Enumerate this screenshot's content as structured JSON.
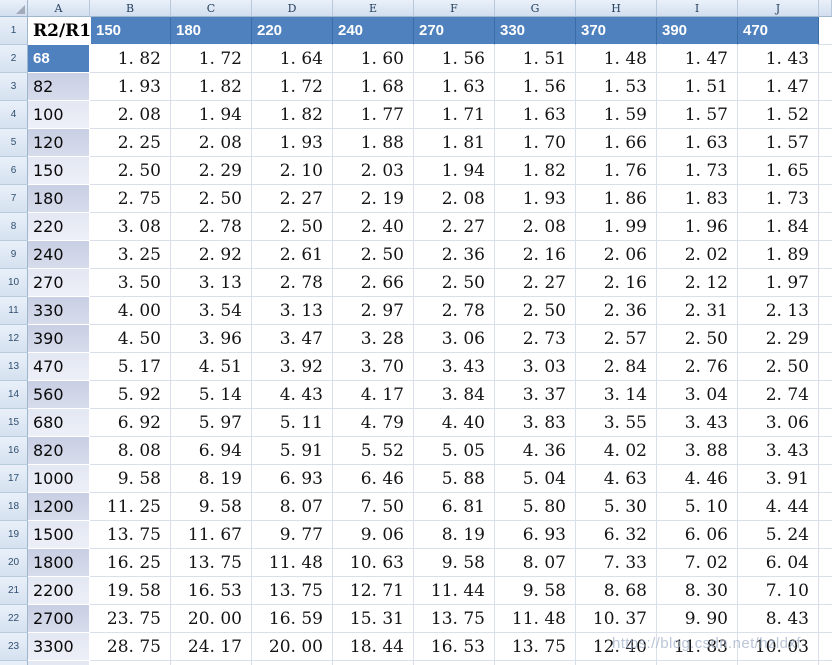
{
  "watermark": "https://blog.csdn.net/hzldxf",
  "colors": {
    "header_blue": "#4E81BD",
    "header_blue_separator": "#3A6DA6",
    "band_dark": "#CDD3E6",
    "band_light": "#E8EBF4",
    "gridline": "#D9E0EC",
    "chrome_border": "#9EB6CE",
    "row_number_text": "#2F4F6F"
  },
  "spreadsheet": {
    "column_letters": [
      "A",
      "B",
      "C",
      "D",
      "E",
      "F",
      "G",
      "H",
      "I",
      "J"
    ],
    "row_numbers": [
      "1",
      "2",
      "3",
      "4",
      "5",
      "6",
      "7",
      "8",
      "9",
      "10",
      "11",
      "12",
      "13",
      "14",
      "15",
      "16",
      "17",
      "18",
      "19",
      "20",
      "21",
      "22",
      "23"
    ],
    "corner_label": "R2/R1",
    "header_values": [
      "150",
      "180",
      "220",
      "240",
      "270",
      "330",
      "370",
      "390",
      "470"
    ],
    "rows": [
      {
        "label": "68",
        "shade": "header",
        "values": [
          "1.82",
          "1.72",
          "1.64",
          "1.60",
          "1.56",
          "1.51",
          "1.48",
          "1.47",
          "1.43"
        ]
      },
      {
        "label": "82",
        "shade": "dark",
        "values": [
          "1.93",
          "1.82",
          "1.72",
          "1.68",
          "1.63",
          "1.56",
          "1.53",
          "1.51",
          "1.47"
        ]
      },
      {
        "label": "100",
        "shade": "light",
        "values": [
          "2.08",
          "1.94",
          "1.82",
          "1.77",
          "1.71",
          "1.63",
          "1.59",
          "1.57",
          "1.52"
        ]
      },
      {
        "label": "120",
        "shade": "dark",
        "values": [
          "2.25",
          "2.08",
          "1.93",
          "1.88",
          "1.81",
          "1.70",
          "1.66",
          "1.63",
          "1.57"
        ]
      },
      {
        "label": "150",
        "shade": "light",
        "values": [
          "2.50",
          "2.29",
          "2.10",
          "2.03",
          "1.94",
          "1.82",
          "1.76",
          "1.73",
          "1.65"
        ]
      },
      {
        "label": "180",
        "shade": "dark",
        "values": [
          "2.75",
          "2.50",
          "2.27",
          "2.19",
          "2.08",
          "1.93",
          "1.86",
          "1.83",
          "1.73"
        ]
      },
      {
        "label": "220",
        "shade": "light",
        "values": [
          "3.08",
          "2.78",
          "2.50",
          "2.40",
          "2.27",
          "2.08",
          "1.99",
          "1.96",
          "1.84"
        ]
      },
      {
        "label": "240",
        "shade": "dark",
        "values": [
          "3.25",
          "2.92",
          "2.61",
          "2.50",
          "2.36",
          "2.16",
          "2.06",
          "2.02",
          "1.89"
        ]
      },
      {
        "label": "270",
        "shade": "light",
        "values": [
          "3.50",
          "3.13",
          "2.78",
          "2.66",
          "2.50",
          "2.27",
          "2.16",
          "2.12",
          "1.97"
        ]
      },
      {
        "label": "330",
        "shade": "dark",
        "values": [
          "4.00",
          "3.54",
          "3.13",
          "2.97",
          "2.78",
          "2.50",
          "2.36",
          "2.31",
          "2.13"
        ]
      },
      {
        "label": "390",
        "shade": "dark",
        "values": [
          "4.50",
          "3.96",
          "3.47",
          "3.28",
          "3.06",
          "2.73",
          "2.57",
          "2.50",
          "2.29"
        ]
      },
      {
        "label": "470",
        "shade": "light",
        "values": [
          "5.17",
          "4.51",
          "3.92",
          "3.70",
          "3.43",
          "3.03",
          "2.84",
          "2.76",
          "2.50"
        ]
      },
      {
        "label": "560",
        "shade": "dark",
        "values": [
          "5.92",
          "5.14",
          "4.43",
          "4.17",
          "3.84",
          "3.37",
          "3.14",
          "3.04",
          "2.74"
        ]
      },
      {
        "label": "680",
        "shade": "light",
        "values": [
          "6.92",
          "5.97",
          "5.11",
          "4.79",
          "4.40",
          "3.83",
          "3.55",
          "3.43",
          "3.06"
        ]
      },
      {
        "label": "820",
        "shade": "dark",
        "values": [
          "8.08",
          "6.94",
          "5.91",
          "5.52",
          "5.05",
          "4.36",
          "4.02",
          "3.88",
          "3.43"
        ]
      },
      {
        "label": "1000",
        "shade": "light",
        "values": [
          "9.58",
          "8.19",
          "6.93",
          "6.46",
          "5.88",
          "5.04",
          "4.63",
          "4.46",
          "3.91"
        ]
      },
      {
        "label": "1200",
        "shade": "dark",
        "values": [
          "11.25",
          "9.58",
          "8.07",
          "7.50",
          "6.81",
          "5.80",
          "5.30",
          "5.10",
          "4.44"
        ]
      },
      {
        "label": "1500",
        "shade": "light",
        "values": [
          "13.75",
          "11.67",
          "9.77",
          "9.06",
          "8.19",
          "6.93",
          "6.32",
          "6.06",
          "5.24"
        ]
      },
      {
        "label": "1800",
        "shade": "dark",
        "values": [
          "16.25",
          "13.75",
          "11.48",
          "10.63",
          "9.58",
          "8.07",
          "7.33",
          "7.02",
          "6.04"
        ]
      },
      {
        "label": "2200",
        "shade": "light",
        "values": [
          "19.58",
          "16.53",
          "13.75",
          "12.71",
          "11.44",
          "9.58",
          "8.68",
          "8.30",
          "7.10"
        ]
      },
      {
        "label": "2700",
        "shade": "dark",
        "values": [
          "23.75",
          "20.00",
          "16.59",
          "15.31",
          "13.75",
          "11.48",
          "10.37",
          "9.90",
          "8.43"
        ]
      },
      {
        "label": "3300",
        "shade": "light",
        "values": [
          "28.75",
          "24.17",
          "20.00",
          "18.44",
          "16.53",
          "13.75",
          "12.40",
          "11.83",
          "10.03"
        ]
      }
    ]
  }
}
